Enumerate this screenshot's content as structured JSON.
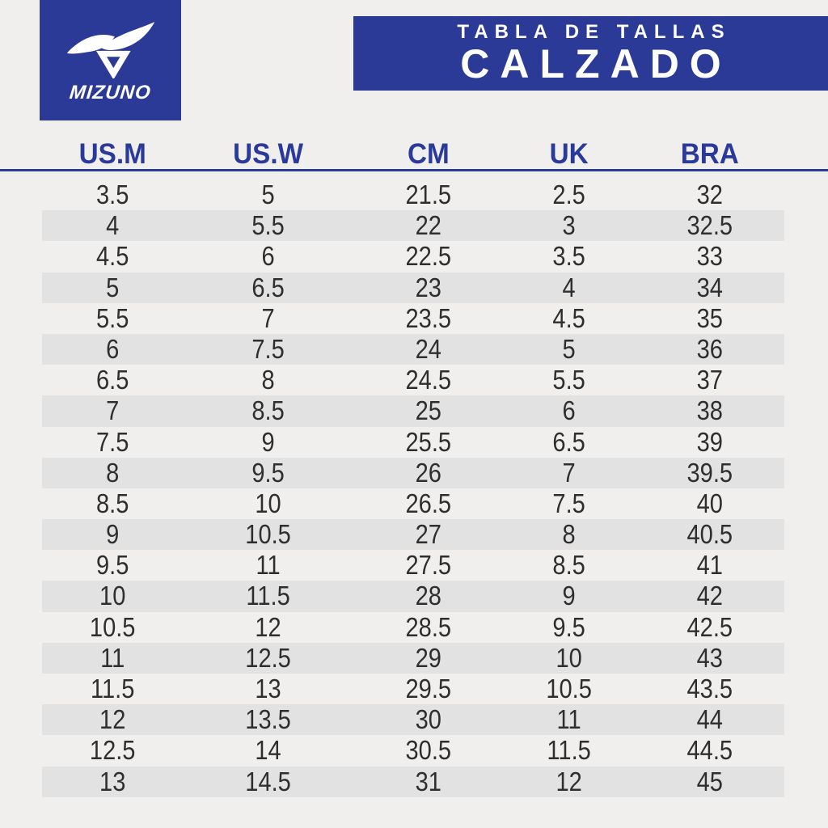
{
  "brand": {
    "wordmark": "MIZUNO"
  },
  "banner": {
    "subtitle": "TABLA DE TALLAS",
    "title": "CALZADO"
  },
  "colors": {
    "brand_blue": "#2b3a96",
    "header_text": "#2a3a9b",
    "stripe": "#e2e2e2",
    "background": "#f0efee",
    "cell_text": "#2e2e2e"
  },
  "table": {
    "columns": [
      "US.M",
      "US.W",
      "CM",
      "UK",
      "BRA"
    ],
    "rows": [
      [
        "3.5",
        "5",
        "21.5",
        "2.5",
        "32"
      ],
      [
        "4",
        "5.5",
        "22",
        "3",
        "32.5"
      ],
      [
        "4.5",
        "6",
        "22.5",
        "3.5",
        "33"
      ],
      [
        "5",
        "6.5",
        "23",
        "4",
        "34"
      ],
      [
        "5.5",
        "7",
        "23.5",
        "4.5",
        "35"
      ],
      [
        "6",
        "7.5",
        "24",
        "5",
        "36"
      ],
      [
        "6.5",
        "8",
        "24.5",
        "5.5",
        "37"
      ],
      [
        "7",
        "8.5",
        "25",
        "6",
        "38"
      ],
      [
        "7.5",
        "9",
        "25.5",
        "6.5",
        "39"
      ],
      [
        "8",
        "9.5",
        "26",
        "7",
        "39.5"
      ],
      [
        "8.5",
        "10",
        "26.5",
        "7.5",
        "40"
      ],
      [
        "9",
        "10.5",
        "27",
        "8",
        "40.5"
      ],
      [
        "9.5",
        "11",
        "27.5",
        "8.5",
        "41"
      ],
      [
        "10",
        "11.5",
        "28",
        "9",
        "42"
      ],
      [
        "10.5",
        "12",
        "28.5",
        "9.5",
        "42.5"
      ],
      [
        "11",
        "12.5",
        "29",
        "10",
        "43"
      ],
      [
        "11.5",
        "13",
        "29.5",
        "10.5",
        "43.5"
      ],
      [
        "12",
        "13.5",
        "30",
        "11",
        "44"
      ],
      [
        "12.5",
        "14",
        "30.5",
        "11.5",
        "44.5"
      ],
      [
        "13",
        "14.5",
        "31",
        "12",
        "45"
      ]
    ]
  }
}
